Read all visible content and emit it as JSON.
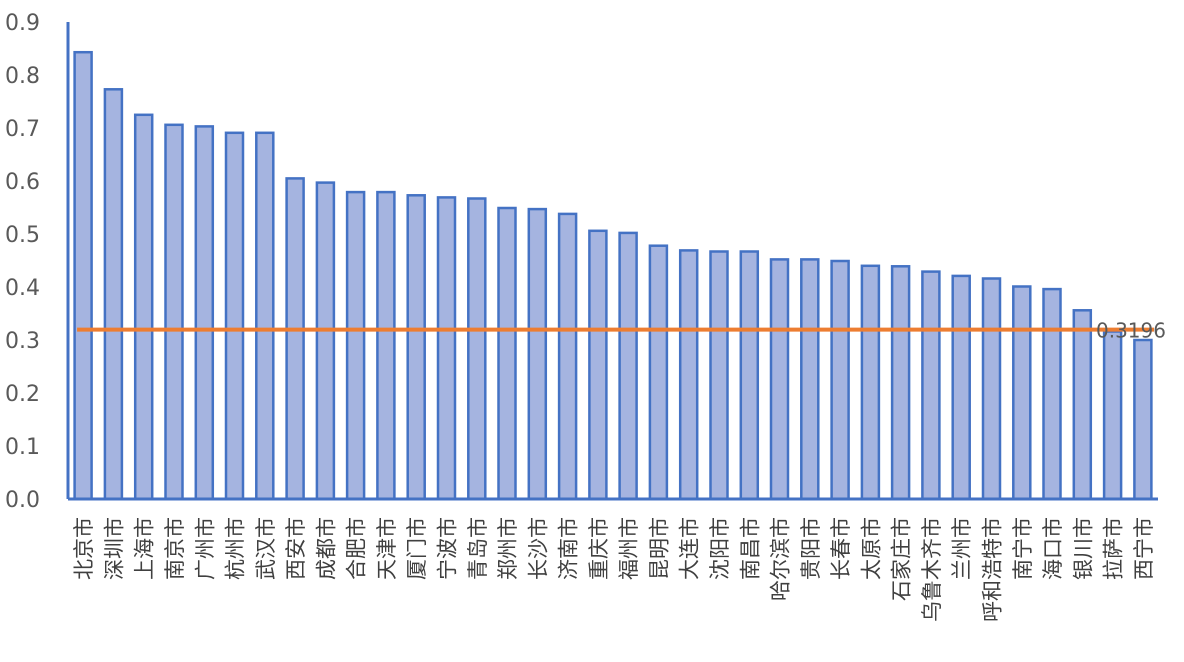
{
  "chart_data": {
    "type": "bar",
    "categories": [
      "北京市",
      "深圳市",
      "上海市",
      "南京市",
      "广州市",
      "杭州市",
      "武汉市",
      "西安市",
      "成都市",
      "合肥市",
      "天津市",
      "厦门市",
      "宁波市",
      "青岛市",
      "郑州市",
      "长沙市",
      "济南市",
      "重庆市",
      "福州市",
      "昆明市",
      "大连市",
      "沈阳市",
      "南昌市",
      "哈尔滨市",
      "贵阳市",
      "长春市",
      "太原市",
      "石家庄市",
      "乌鲁木齐市",
      "兰州市",
      "呼和浩特市",
      "南宁市",
      "海口市",
      "银川市",
      "拉萨市",
      "西宁市"
    ],
    "values": [
      0.843,
      0.773,
      0.725,
      0.706,
      0.703,
      0.691,
      0.691,
      0.605,
      0.597,
      0.579,
      0.579,
      0.573,
      0.569,
      0.567,
      0.549,
      0.547,
      0.538,
      0.506,
      0.502,
      0.478,
      0.469,
      0.467,
      0.467,
      0.452,
      0.452,
      0.449,
      0.44,
      0.439,
      0.429,
      0.421,
      0.416,
      0.401,
      0.396,
      0.356,
      0.316,
      0.3
    ],
    "reference_line": {
      "value": 0.3196,
      "label": "0.3196",
      "color": "#ED7D31"
    },
    "ylim": [
      0.0,
      0.9
    ],
    "yticks": [
      "0.0",
      "0.1",
      "0.2",
      "0.3",
      "0.4",
      "0.5",
      "0.6",
      "0.7",
      "0.8",
      "0.9"
    ],
    "title": "",
    "xlabel": "",
    "ylabel": "",
    "grid": false,
    "colors": {
      "bar_fill": "#A5B4E0",
      "bar_stroke": "#4472C4",
      "axis": "#4472C4",
      "reference": "#ED7D31"
    }
  }
}
